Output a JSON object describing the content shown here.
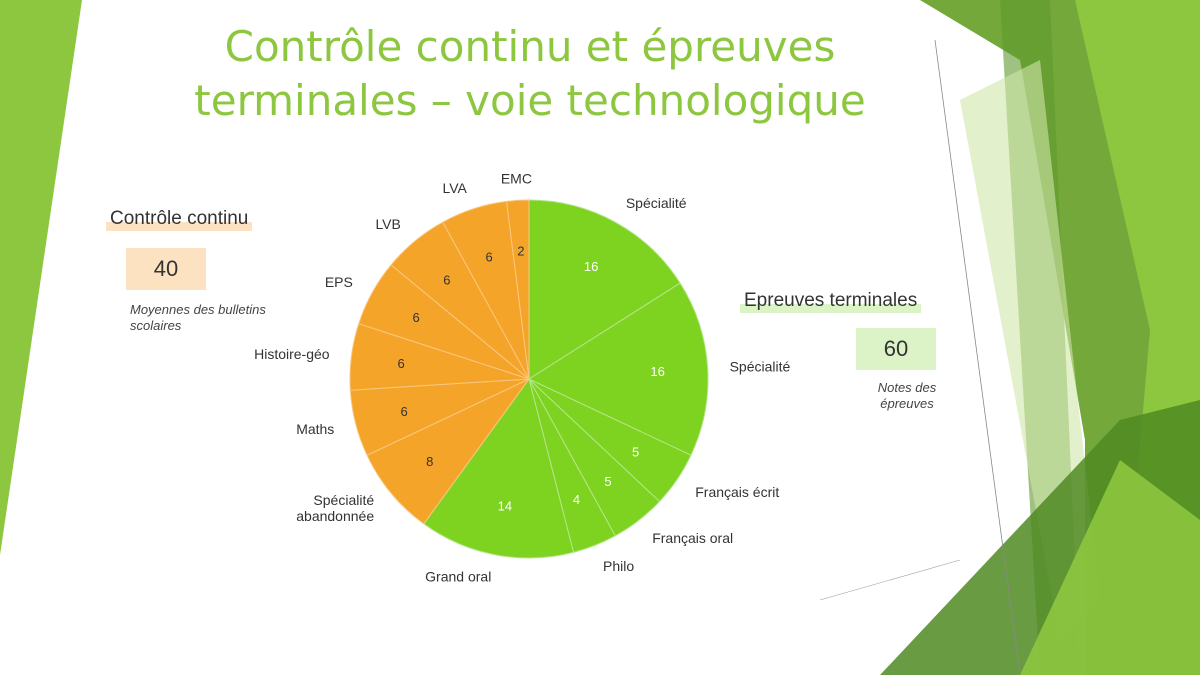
{
  "title": "Contrôle continu et épreuves terminales – voie technologique",
  "panels": {
    "left": {
      "title": "Contrôle continu",
      "score": "40",
      "caption": "Moyennes des bulletins scolaires"
    },
    "right": {
      "title": "Epreuves terminales",
      "score": "60",
      "caption": "Notes des épreuves"
    }
  },
  "colors": {
    "accent": "#8dc63f",
    "controle_continu": "#f5a42a",
    "epreuves": "#7ed321"
  },
  "chart_data": {
    "type": "pie",
    "start": "top, clockwise",
    "slices": [
      {
        "label": "Spécialité",
        "value": 16,
        "group": "epreuves"
      },
      {
        "label": "Spécialité",
        "value": 16,
        "group": "epreuves"
      },
      {
        "label": "Français écrit",
        "value": 5,
        "group": "epreuves"
      },
      {
        "label": "Français oral",
        "value": 5,
        "group": "epreuves"
      },
      {
        "label": "Philo",
        "value": 4,
        "group": "epreuves"
      },
      {
        "label": "Grand oral",
        "value": 14,
        "group": "epreuves"
      },
      {
        "label": "Spécialité abandonnée",
        "value": 8,
        "group": "controle_continu"
      },
      {
        "label": "Maths",
        "value": 6,
        "group": "controle_continu"
      },
      {
        "label": "Histoire-géo",
        "value": 6,
        "group": "controle_continu"
      },
      {
        "label": "EPS",
        "value": 6,
        "group": "controle_continu"
      },
      {
        "label": "LVB",
        "value": 6,
        "group": "controle_continu"
      },
      {
        "label": "LVA",
        "value": 6,
        "group": "controle_continu"
      },
      {
        "label": "EMC",
        "value": 2,
        "group": "controle_continu"
      }
    ]
  }
}
